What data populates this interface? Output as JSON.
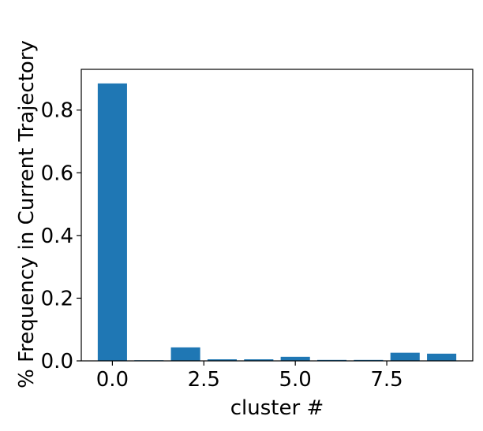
{
  "chart_data": {
    "type": "bar",
    "x": [
      0,
      1,
      2,
      3,
      4,
      5,
      6,
      7,
      8,
      9
    ],
    "values": [
      0.885,
      0.002,
      0.043,
      0.005,
      0.005,
      0.013,
      0.003,
      0.003,
      0.026,
      0.023
    ],
    "bar_width": 0.8,
    "xlabel": "cluster #",
    "ylabel": "% Frequency in Current Trajectory",
    "xlim": [
      -0.85,
      9.85
    ],
    "ylim": [
      0,
      0.93
    ],
    "xticks": [
      0.0,
      2.5,
      5.0,
      7.5
    ],
    "xtick_labels": [
      "0.0",
      "2.5",
      "5.0",
      "7.5"
    ],
    "yticks": [
      0.0,
      0.2,
      0.4,
      0.6,
      0.8
    ],
    "ytick_labels": [
      "0.0",
      "0.2",
      "0.4",
      "0.6",
      "0.8"
    ],
    "bar_color": "#1f77b4",
    "grid": false,
    "legend": "none"
  }
}
